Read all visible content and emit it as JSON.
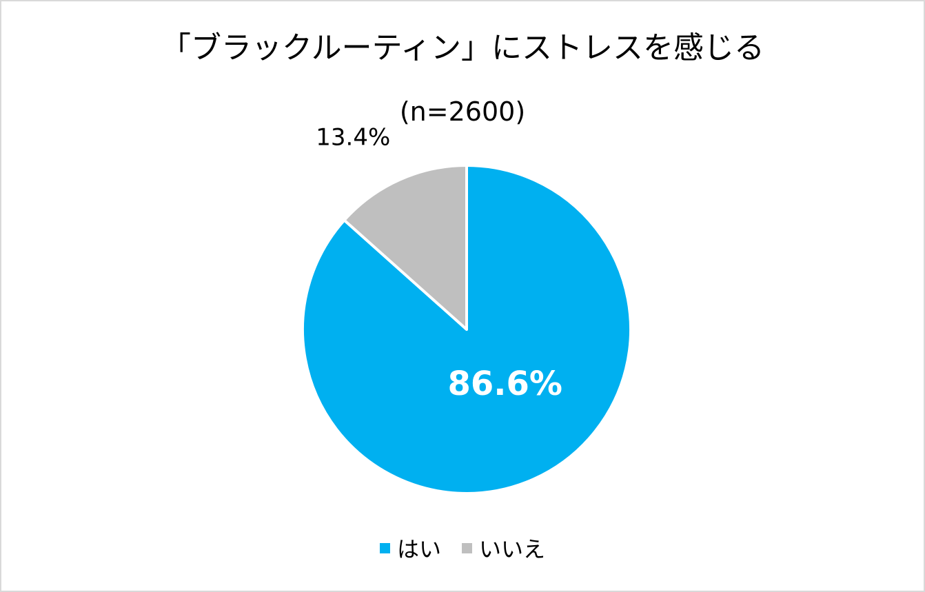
{
  "chart_data": {
    "type": "pie",
    "title": "「ブラックルーティン」にストレスを感じる",
    "subtitle": "(n=2600)",
    "series": [
      {
        "name": "はい",
        "value": 86.6,
        "label": "86.6%",
        "color": "#00b0f0"
      },
      {
        "name": "いいえ",
        "value": 13.4,
        "label": "13.4%",
        "color": "#bfbfbf"
      }
    ],
    "legend_position": "bottom"
  }
}
